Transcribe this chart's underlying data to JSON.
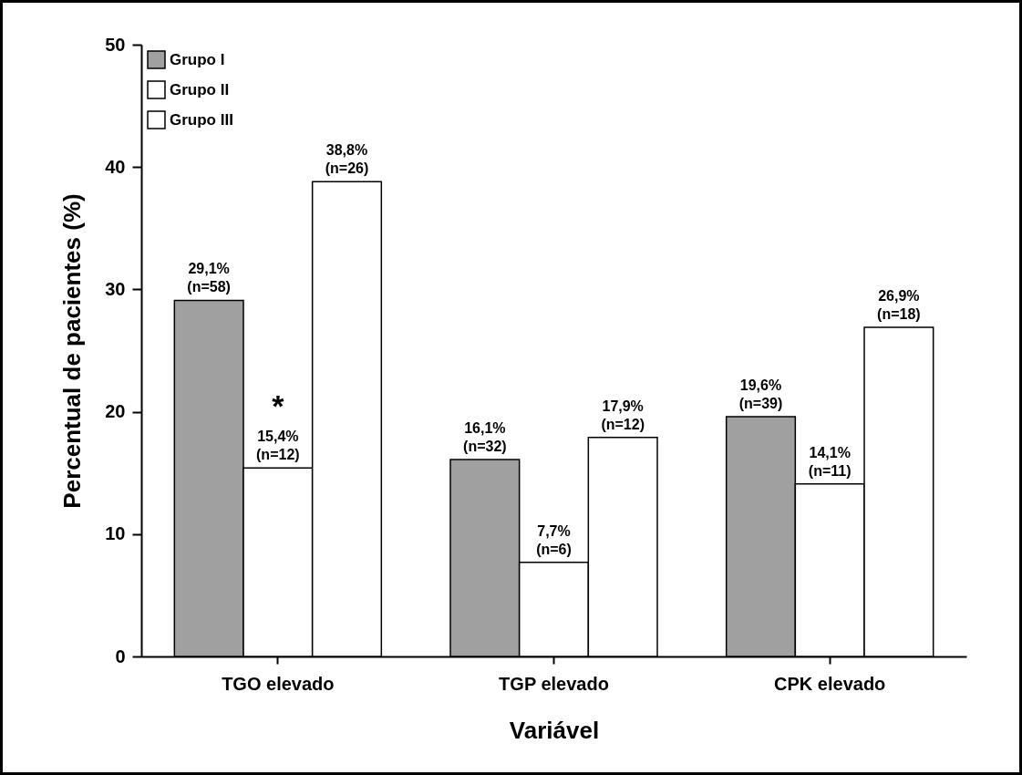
{
  "chart_data": {
    "type": "bar",
    "xlabel": "Variável",
    "ylabel": "Percentual de pacientes (%)",
    "categories": [
      "TGO elevado",
      "TGP elevado",
      "CPK elevado"
    ],
    "series": [
      {
        "name": "Grupo I",
        "color": "#a0a0a0",
        "values": [
          29.1,
          16.1,
          19.6
        ],
        "value_labels": [
          "29,1%\n(n=58)",
          "16,1%\n(n=32)",
          "19,6%\n(n=39)"
        ]
      },
      {
        "name": "Grupo II",
        "color": "#ffffff",
        "values": [
          15.4,
          7.7,
          14.1
        ],
        "value_labels": [
          "15,4%\n(n=12)",
          "7,7%\n(n=6)",
          "14,1%\n(n=11)"
        ]
      },
      {
        "name": "Grupo III",
        "color": "#ffffff",
        "values": [
          38.8,
          17.9,
          26.9
        ],
        "value_labels": [
          "38,8%\n(n=26)",
          "17,9%\n(n=12)",
          "26,9%\n(n=18)"
        ]
      }
    ],
    "ylim": [
      0,
      50
    ],
    "yticks": [
      0,
      10,
      20,
      30,
      40,
      50
    ],
    "grid": false,
    "legend": "top left",
    "annotations": [
      {
        "text": "*",
        "x": "TGO elevado",
        "y": 15.4
      }
    ]
  }
}
